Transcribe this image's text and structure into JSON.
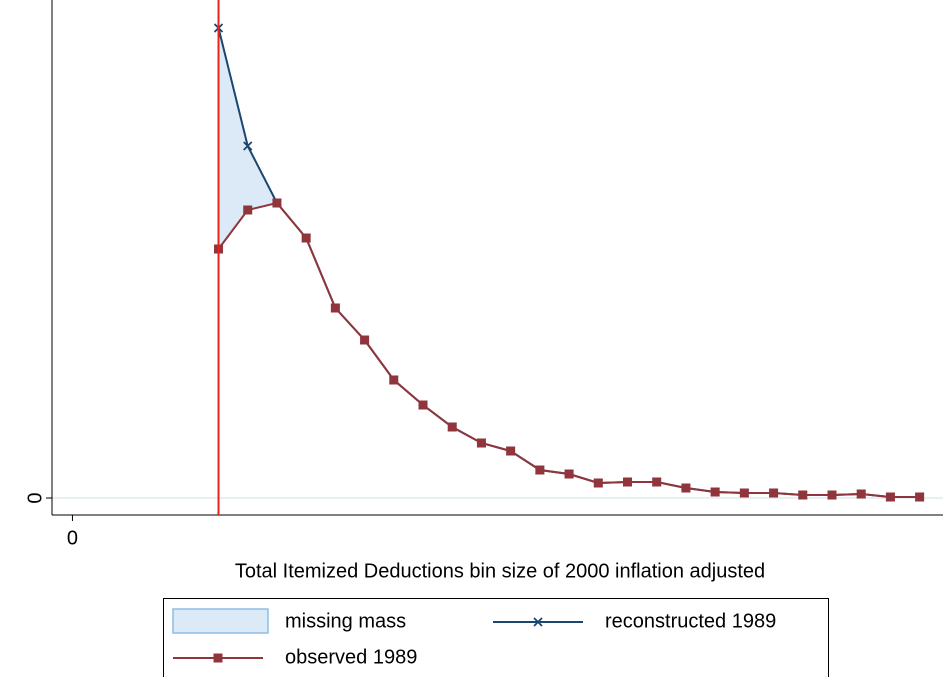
{
  "chart_data": {
    "type": "line",
    "xlabel": "Total Itemized Deductions bin size of 2000 inflation adjusted",
    "x": [
      5,
      6,
      7,
      8,
      9,
      10,
      11,
      12,
      13,
      14,
      15,
      16,
      17,
      18,
      19,
      20,
      21,
      22,
      23,
      24,
      25,
      26,
      27,
      28,
      29
    ],
    "series": [
      {
        "name": "reconstructed 1989",
        "color": "#1a476f",
        "marker": "x",
        "values": [
          47.0,
          35.2,
          29.5,
          26.0,
          19.0,
          15.8,
          11.8,
          9.3,
          7.1,
          5.5,
          4.7,
          2.8,
          2.4,
          1.5,
          1.6,
          1.6,
          1.0,
          0.6,
          0.5,
          0.5,
          0.3,
          0.3,
          0.4,
          0.1,
          0.1
        ]
      },
      {
        "name": "observed 1989",
        "color": "#90353b",
        "marker": "square",
        "values": [
          24.9,
          28.8,
          29.5,
          26.0,
          19.0,
          15.8,
          11.8,
          9.3,
          7.1,
          5.5,
          4.7,
          2.8,
          2.4,
          1.5,
          1.6,
          1.6,
          1.0,
          0.6,
          0.5,
          0.5,
          0.3,
          0.3,
          0.4,
          0.1,
          0.1
        ]
      }
    ],
    "area": {
      "name": "missing mass",
      "color": "#dceaf7",
      "edge": "#8dbde6",
      "x": [
        5,
        6,
        7
      ],
      "upper": [
        47.0,
        35.2,
        29.5
      ],
      "lower": [
        24.9,
        28.8,
        29.5
      ]
    },
    "vline": 5,
    "vline_color": "#e8231c",
    "xlim": [
      -0.7,
      29.8
    ],
    "xticks": [
      0
    ],
    "ylim": [
      -1.7,
      49.8
    ],
    "yticks": [
      0
    ],
    "grid": true
  }
}
